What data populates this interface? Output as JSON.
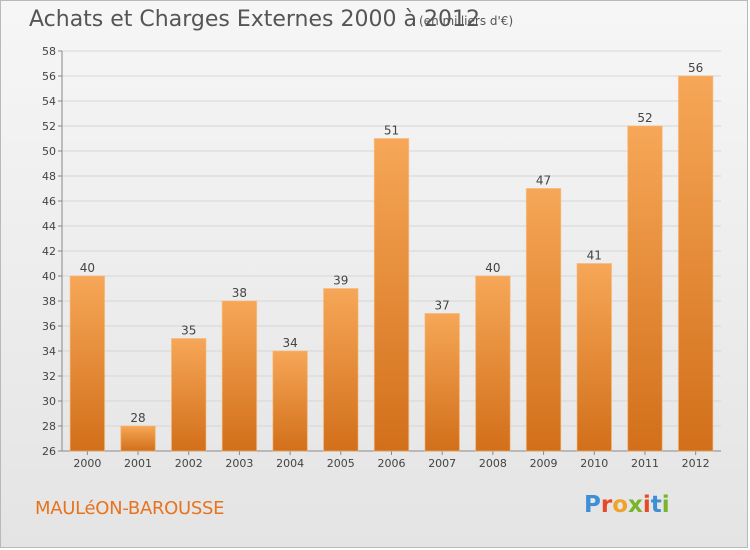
{
  "header": {
    "title": "Achats et Charges Externes 2000 à 2012",
    "subtitle": "(en milliers d'€)"
  },
  "footer": {
    "commune": "MAULéON-BAROUSSE",
    "logo_text": "Proxiti",
    "logo_colors": [
      "#3f8fd6",
      "#e84a27",
      "#f1a22b",
      "#77b52a",
      "#e84a27",
      "#3f8fd6",
      "#77b52a"
    ]
  },
  "colors": {
    "bar_top": "#f6a757",
    "bar_bottom": "#d26f1a",
    "grid": "#d6d6d6",
    "axis_text": "#444444",
    "commune": "#e8731f"
  },
  "chart_data": {
    "type": "bar",
    "title": "Achats et Charges Externes 2000 à 2012",
    "subtitle": "(en milliers d'€)",
    "xlabel": "",
    "ylabel": "",
    "categories": [
      "2000",
      "2001",
      "2002",
      "2003",
      "2004",
      "2005",
      "2006",
      "2007",
      "2008",
      "2009",
      "2010",
      "2011",
      "2012"
    ],
    "values": [
      40,
      28,
      35,
      38,
      34,
      39,
      51,
      37,
      40,
      47,
      41,
      52,
      56
    ],
    "data_labels": [
      "40",
      "28",
      "35",
      "38",
      "34",
      "39",
      "51",
      "37",
      "40",
      "47",
      "41",
      "52",
      "56"
    ],
    "ylim": [
      26,
      58
    ],
    "yticks": [
      26,
      28,
      30,
      32,
      34,
      36,
      38,
      40,
      42,
      44,
      46,
      48,
      50,
      52,
      54,
      56,
      58
    ],
    "grid": true,
    "legend": "none"
  }
}
